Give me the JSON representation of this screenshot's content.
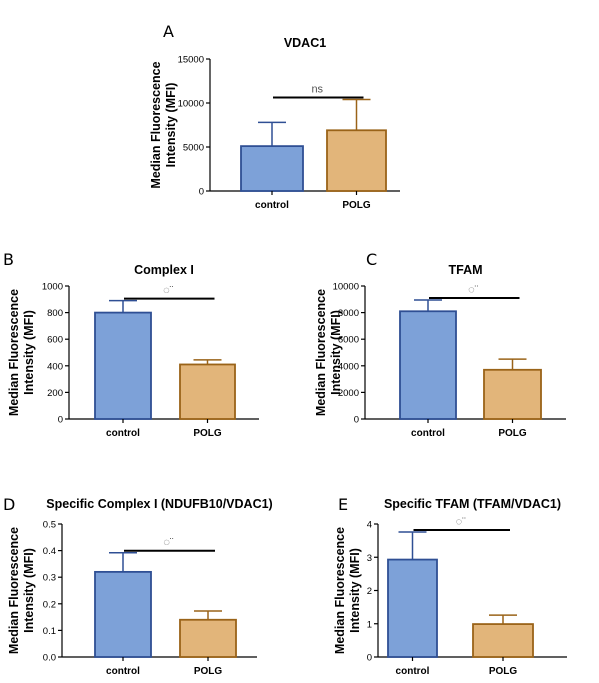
{
  "colors": {
    "control_fill": "#7da1d8",
    "control_stroke": "#2f4f94",
    "polg_fill": "#e2b57a",
    "polg_stroke": "#9a6318"
  },
  "chart_data": [
    {
      "panel": "A",
      "type": "bar",
      "title": "VDAC1",
      "ylabel": "Median Fluorescence\nIntensity (MFI)",
      "xlabel": "",
      "categories": [
        "control",
        "POLG"
      ],
      "values": [
        5100,
        6900
      ],
      "errors": [
        2700,
        3500
      ],
      "ylim": [
        0,
        15000
      ],
      "yticks": [
        "0",
        "5000",
        "10000",
        "15000"
      ],
      "significance": "ns",
      "grid": false
    },
    {
      "panel": "B",
      "type": "bar",
      "title": "Complex I",
      "ylabel": "Median Fluorescence\nIntensity (MFI)",
      "xlabel": "",
      "categories": [
        "control",
        "POLG"
      ],
      "values": [
        800,
        410
      ],
      "errors": [
        90,
        35
      ],
      "ylim": [
        0,
        1000
      ],
      "yticks": [
        "0",
        "200",
        "400",
        "600",
        "800",
        "1000"
      ],
      "significance": "◌¨",
      "grid": false
    },
    {
      "panel": "C",
      "type": "bar",
      "title": "TFAM",
      "ylabel": "Median Fluorescence\nIntensity (MFI)",
      "xlabel": "",
      "categories": [
        "control",
        "POLG"
      ],
      "values": [
        8100,
        3700
      ],
      "errors": [
        850,
        800
      ],
      "ylim": [
        0,
        10000
      ],
      "yticks": [
        "0",
        "2000",
        "4000",
        "6000",
        "8000",
        "10000"
      ],
      "significance": "◌¨",
      "grid": false
    },
    {
      "panel": "D",
      "type": "bar",
      "title": "Specific Complex I (NDUFB10/VDAC1)",
      "ylabel": "Median Fluorescence\nIntensity (MFI)",
      "xlabel": "",
      "categories": [
        "control",
        "POLG"
      ],
      "values": [
        0.32,
        0.14
      ],
      "errors": [
        0.072,
        0.033
      ],
      "ylim": [
        0,
        0.5
      ],
      "yticks": [
        "0.0",
        "0.1",
        "0.2",
        "0.3",
        "0.4",
        "0.5"
      ],
      "significance": "◌¨",
      "grid": false
    },
    {
      "panel": "E",
      "type": "bar",
      "title": "Specific TFAM (TFAM/VDAC1)",
      "ylabel": "Median Fluorescence\nIntensity (MFI)",
      "xlabel": "",
      "categories": [
        "control",
        "POLG"
      ],
      "values": [
        2.93,
        0.99
      ],
      "errors": [
        0.83,
        0.27
      ],
      "ylim": [
        0,
        4
      ],
      "yticks": [
        "0",
        "1",
        "2",
        "3",
        "4"
      ],
      "significance": "◌¨",
      "grid": false
    }
  ]
}
